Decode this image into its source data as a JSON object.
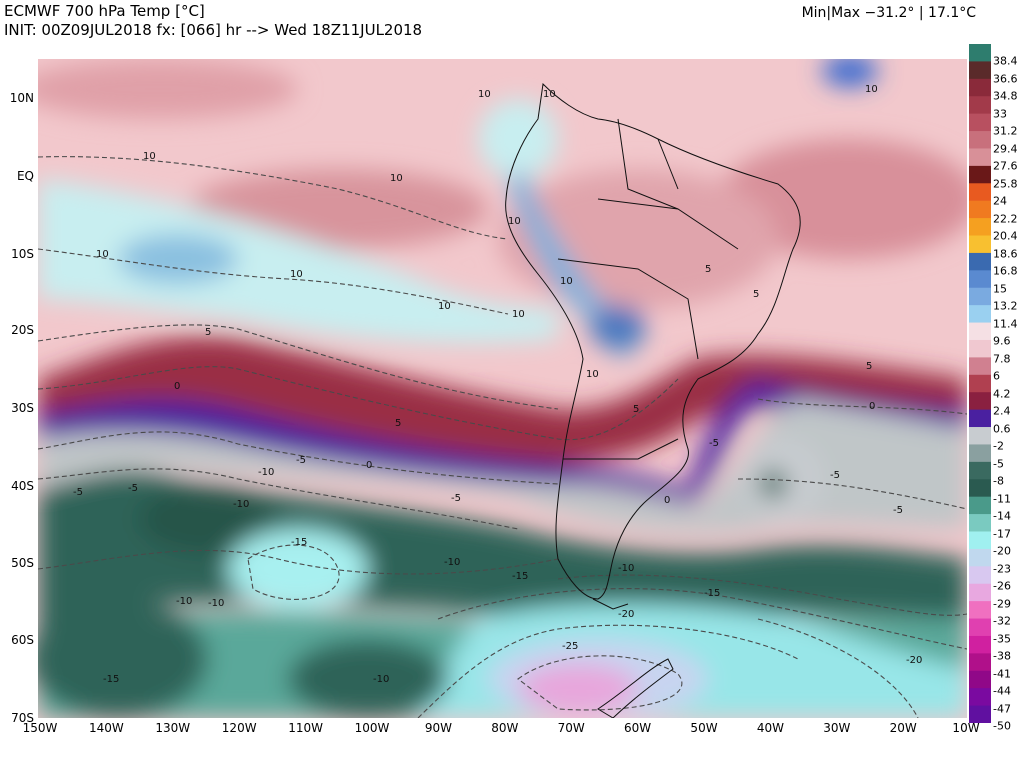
{
  "header": {
    "title": "ECMWF 700 hPa Temp [°C]",
    "init": "INIT: 00Z09JUL2018 fx: [066] hr --> Wed 18Z11JUL2018",
    "minmax": "Min|Max −31.2° | 17.1°C"
  },
  "axes": {
    "lat_labels": [
      "10N",
      "EQ",
      "10S",
      "20S",
      "30S",
      "40S",
      "50S",
      "60S",
      "70S"
    ],
    "lon_labels": [
      "150W",
      "140W",
      "130W",
      "120W",
      "110W",
      "100W",
      "90W",
      "80W",
      "70W",
      "60W",
      "50W",
      "40W",
      "30W",
      "20W",
      "10W"
    ]
  },
  "colorbar": {
    "labels": [
      "38.4",
      "36.6",
      "34.8",
      "33",
      "31.2",
      "29.4",
      "27.6",
      "25.8",
      "24",
      "22.2",
      "20.4",
      "18.6",
      "16.8",
      "15",
      "13.2",
      "11.4",
      "9.6",
      "7.8",
      "6",
      "4.2",
      "2.4",
      "0.6",
      "-2",
      "-5",
      "-8",
      "-11",
      "-14",
      "-17",
      "-20",
      "-23",
      "-26",
      "-29",
      "-32",
      "-35",
      "-38",
      "-41",
      "-44",
      "-47",
      "-50"
    ],
    "colors": [
      "#2e7d6e",
      "#5a2a2a",
      "#8a2a3a",
      "#a23a4a",
      "#b85060",
      "#c8707c",
      "#d89098",
      "#6a1818",
      "#e85a20",
      "#f07a20",
      "#f5a020",
      "#f8c030",
      "#3a6ab0",
      "#5a8ad0",
      "#7aaae0",
      "#9ad0f0",
      "#f5e0e4",
      "#f0c8d0",
      "#d08090",
      "#b04050",
      "#8a2040",
      "#4a20a0",
      "#c8ccd0",
      "#8aa0a0",
      "#3a6a60",
      "#2a5a50",
      "#4a9a8a",
      "#7acac0",
      "#a0f0f0",
      "#c0d8ee",
      "#d8c8f0",
      "#e8a8e0",
      "#f070c0",
      "#e040b0",
      "#d020a0",
      "#b0108a",
      "#900888",
      "#7a0aa0",
      "#6010a0"
    ]
  },
  "contour_labels": [
    "10",
    "10",
    "10",
    "10",
    "10",
    "10",
    "10",
    "10",
    "10",
    "10",
    "10",
    "10",
    "5",
    "5",
    "5",
    "5",
    "5",
    "5",
    "0",
    "0",
    "0",
    "0",
    "-5",
    "-5",
    "-5",
    "-5",
    "-5",
    "-5",
    "-5",
    "-10",
    "-10",
    "-10",
    "-10",
    "-10",
    "-10",
    "-10",
    "-15",
    "-15",
    "-15",
    "-15",
    "-20",
    "-20",
    "-25"
  ]
}
